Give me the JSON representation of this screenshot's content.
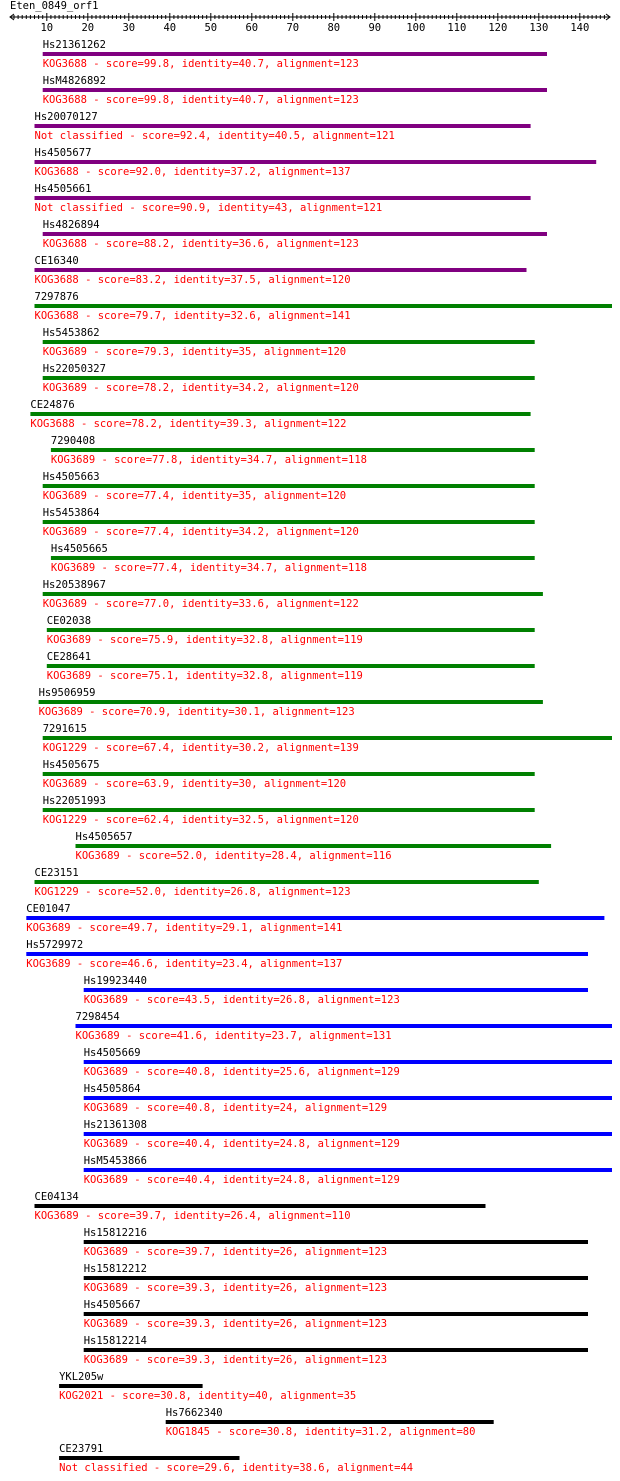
{
  "chart_data": {
    "type": "bar",
    "title": "Eten_0849_orf1",
    "axis": {
      "min": 1,
      "max": 141,
      "major_ticks": [
        10,
        20,
        30,
        40,
        50,
        60,
        70,
        80,
        90,
        100,
        110,
        120,
        130,
        140
      ]
    },
    "colors": {
      "purple": "#800080",
      "green": "#008000",
      "blue": "#0000ff",
      "black": "#000000",
      "label": "#000000",
      "description": "#ff0000"
    },
    "hits": [
      {
        "name": "Hs21361262",
        "start": 9,
        "end": 132,
        "color": "purple",
        "description": "KOG3688 - score=99.8, identity=40.7, alignment=123"
      },
      {
        "name": "HsM4826892",
        "start": 9,
        "end": 132,
        "color": "purple",
        "description": "KOG3688 - score=99.8, identity=40.7, alignment=123"
      },
      {
        "name": "Hs20070127",
        "start": 7,
        "end": 128,
        "color": "purple",
        "description": "Not classified - score=92.4, identity=40.5, alignment=121"
      },
      {
        "name": "Hs4505677",
        "start": 7,
        "end": 144,
        "color": "purple",
        "description": "KOG3688 - score=92.0, identity=37.2, alignment=137"
      },
      {
        "name": "Hs4505661",
        "start": 7,
        "end": 128,
        "color": "purple",
        "description": "Not classified - score=90.9, identity=43, alignment=121"
      },
      {
        "name": "Hs4826894",
        "start": 9,
        "end": 132,
        "color": "purple",
        "description": "KOG3688 - score=88.2, identity=36.6, alignment=123"
      },
      {
        "name": "CE16340",
        "start": 7,
        "end": 127,
        "color": "purple",
        "description": "KOG3688 - score=83.2, identity=37.5, alignment=120"
      },
      {
        "name": "7297876",
        "start": 7,
        "end": 148,
        "color": "green",
        "description": "KOG3688 - score=79.7, identity=32.6, alignment=141"
      },
      {
        "name": "Hs5453862",
        "start": 9,
        "end": 129,
        "color": "green",
        "description": "KOG3689 - score=79.3, identity=35, alignment=120"
      },
      {
        "name": "Hs22050327",
        "start": 9,
        "end": 129,
        "color": "green",
        "description": "KOG3689 - score=78.2, identity=34.2, alignment=120"
      },
      {
        "name": "CE24876",
        "start": 6,
        "end": 128,
        "color": "green",
        "description": "KOG3688 - score=78.2, identity=39.3, alignment=122"
      },
      {
        "name": "7290408",
        "start": 11,
        "end": 129,
        "color": "green",
        "description": "KOG3689 - score=77.8, identity=34.7, alignment=118"
      },
      {
        "name": "Hs4505663",
        "start": 9,
        "end": 129,
        "color": "green",
        "description": "KOG3689 - score=77.4, identity=35, alignment=120"
      },
      {
        "name": "Hs5453864",
        "start": 9,
        "end": 129,
        "color": "green",
        "description": "KOG3689 - score=77.4, identity=34.2, alignment=120"
      },
      {
        "name": "Hs4505665",
        "start": 11,
        "end": 129,
        "color": "green",
        "description": "KOG3689 - score=77.4, identity=34.7, alignment=118"
      },
      {
        "name": "Hs20538967",
        "start": 9,
        "end": 131,
        "color": "green",
        "description": "KOG3689 - score=77.0, identity=33.6, alignment=122"
      },
      {
        "name": "CE02038",
        "start": 10,
        "end": 129,
        "color": "green",
        "description": "KOG3689 - score=75.9, identity=32.8, alignment=119"
      },
      {
        "name": "CE28641",
        "start": 10,
        "end": 129,
        "color": "green",
        "description": "KOG3689 - score=75.1, identity=32.8, alignment=119"
      },
      {
        "name": "Hs9506959",
        "start": 8,
        "end": 131,
        "color": "green",
        "description": "KOG3689 - score=70.9, identity=30.1, alignment=123"
      },
      {
        "name": "7291615",
        "start": 9,
        "end": 148,
        "color": "green",
        "description": "KOG1229 - score=67.4, identity=30.2, alignment=139"
      },
      {
        "name": "Hs4505675",
        "start": 9,
        "end": 129,
        "color": "green",
        "description": "KOG3689 - score=63.9, identity=30, alignment=120"
      },
      {
        "name": "Hs22051993",
        "start": 9,
        "end": 129,
        "color": "green",
        "description": "KOG1229 - score=62.4, identity=32.5, alignment=120"
      },
      {
        "name": "Hs4505657",
        "start": 17,
        "end": 133,
        "color": "green",
        "description": "KOG3689 - score=52.0, identity=28.4, alignment=116"
      },
      {
        "name": "CE23151",
        "start": 7,
        "end": 130,
        "color": "green",
        "description": "KOG1229 - score=52.0, identity=26.8, alignment=123"
      },
      {
        "name": "CE01047",
        "start": 5,
        "end": 146,
        "color": "blue",
        "description": "KOG3689 - score=49.7, identity=29.1, alignment=141"
      },
      {
        "name": "Hs5729972",
        "start": 5,
        "end": 142,
        "color": "blue",
        "description": "KOG3689 - score=46.6, identity=23.4, alignment=137"
      },
      {
        "name": "Hs19923440",
        "start": 19,
        "end": 142,
        "color": "blue",
        "description": "KOG3689 - score=43.5, identity=26.8, alignment=123"
      },
      {
        "name": "7298454",
        "start": 17,
        "end": 148,
        "color": "blue",
        "description": "KOG3689 - score=41.6, identity=23.7, alignment=131"
      },
      {
        "name": "Hs4505669",
        "start": 19,
        "end": 148,
        "color": "blue",
        "description": "KOG3689 - score=40.8, identity=25.6, alignment=129"
      },
      {
        "name": "Hs4505864",
        "start": 19,
        "end": 148,
        "color": "blue",
        "description": "KOG3689 - score=40.8, identity=24, alignment=129"
      },
      {
        "name": "Hs21361308",
        "start": 19,
        "end": 148,
        "color": "blue",
        "description": "KOG3689 - score=40.4, identity=24.8, alignment=129"
      },
      {
        "name": "HsM5453866",
        "start": 19,
        "end": 148,
        "color": "blue",
        "description": "KOG3689 - score=40.4, identity=24.8, alignment=129"
      },
      {
        "name": "CE04134",
        "start": 7,
        "end": 117,
        "color": "black",
        "description": "KOG3689 - score=39.7, identity=26.4, alignment=110"
      },
      {
        "name": "Hs15812216",
        "start": 19,
        "end": 142,
        "color": "black",
        "description": "KOG3689 - score=39.7, identity=26, alignment=123"
      },
      {
        "name": "Hs15812212",
        "start": 19,
        "end": 142,
        "color": "black",
        "description": "KOG3689 - score=39.3, identity=26, alignment=123"
      },
      {
        "name": "Hs4505667",
        "start": 19,
        "end": 142,
        "color": "black",
        "description": "KOG3689 - score=39.3, identity=26, alignment=123"
      },
      {
        "name": "Hs15812214",
        "start": 19,
        "end": 142,
        "color": "black",
        "description": "KOG3689 - score=39.3, identity=26, alignment=123"
      },
      {
        "name": "YKL205w",
        "start": 13,
        "end": 48,
        "color": "black",
        "description": "KOG2021 - score=30.8, identity=40, alignment=35"
      },
      {
        "name": "Hs7662340",
        "start": 39,
        "end": 119,
        "color": "black",
        "description": "KOG1845 - score=30.8, identity=31.2, alignment=80"
      },
      {
        "name": "CE23791",
        "start": 13,
        "end": 57,
        "color": "black",
        "description": "Not classified - score=29.6, identity=38.6, alignment=44"
      }
    ]
  }
}
